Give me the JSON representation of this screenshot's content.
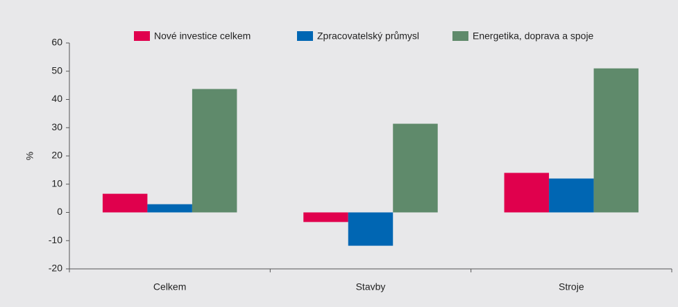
{
  "chart_data": {
    "type": "bar",
    "categories": [
      "Celkem",
      "Stavby",
      "Stroje"
    ],
    "series": [
      {
        "name": "Nové investice celkem",
        "color": "#e0004d",
        "values": [
          6.6,
          -3.4,
          14
        ]
      },
      {
        "name": "Zpracovatelský průmysl",
        "color": "#0066b3",
        "values": [
          2.9,
          -11.8,
          12
        ]
      },
      {
        "name": "Energetika, doprava a spoje",
        "color": "#5f8a6b",
        "values": [
          43.7,
          31.4,
          51
        ]
      }
    ],
    "ylabel": "%",
    "ylim": [
      -20,
      60
    ],
    "yticks": [
      -20,
      -10,
      0,
      10,
      20,
      30,
      40,
      50,
      60
    ],
    "legend": "top"
  }
}
